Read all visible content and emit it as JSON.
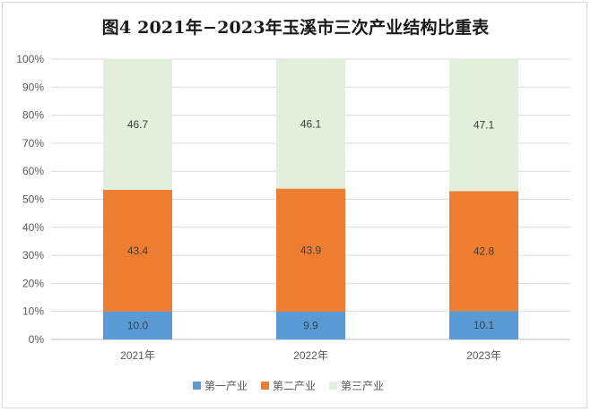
{
  "title": "图4   2021年−2023年玉溪市三次产业结构比重表",
  "chart_data": {
    "type": "bar",
    "stacked": true,
    "percent": true,
    "title": "图4   2021年−2023年玉溪市三次产业结构比重表",
    "categories": [
      "2021年",
      "2022年",
      "2023年"
    ],
    "series": [
      {
        "name": "第一产业",
        "values": [
          10.0,
          9.9,
          10.1
        ],
        "labels": [
          "10.0",
          "9.9",
          "10.1"
        ],
        "color": "#5b9bd5"
      },
      {
        "name": "第二产业",
        "values": [
          43.4,
          43.9,
          42.8
        ],
        "labels": [
          "43.4",
          "43.9",
          "42.8"
        ],
        "color": "#ed7d31"
      },
      {
        "name": "第三产业",
        "values": [
          46.7,
          46.1,
          47.1
        ],
        "labels": [
          "46.7",
          "46.1",
          "47.1"
        ],
        "color": "#e2efda"
      }
    ],
    "yticks": [
      "0%",
      "10%",
      "20%",
      "30%",
      "40%",
      "50%",
      "60%",
      "70%",
      "80%",
      "90%",
      "100%"
    ],
    "ylim": [
      0,
      100
    ],
    "grid": true,
    "legend": "bottom"
  }
}
